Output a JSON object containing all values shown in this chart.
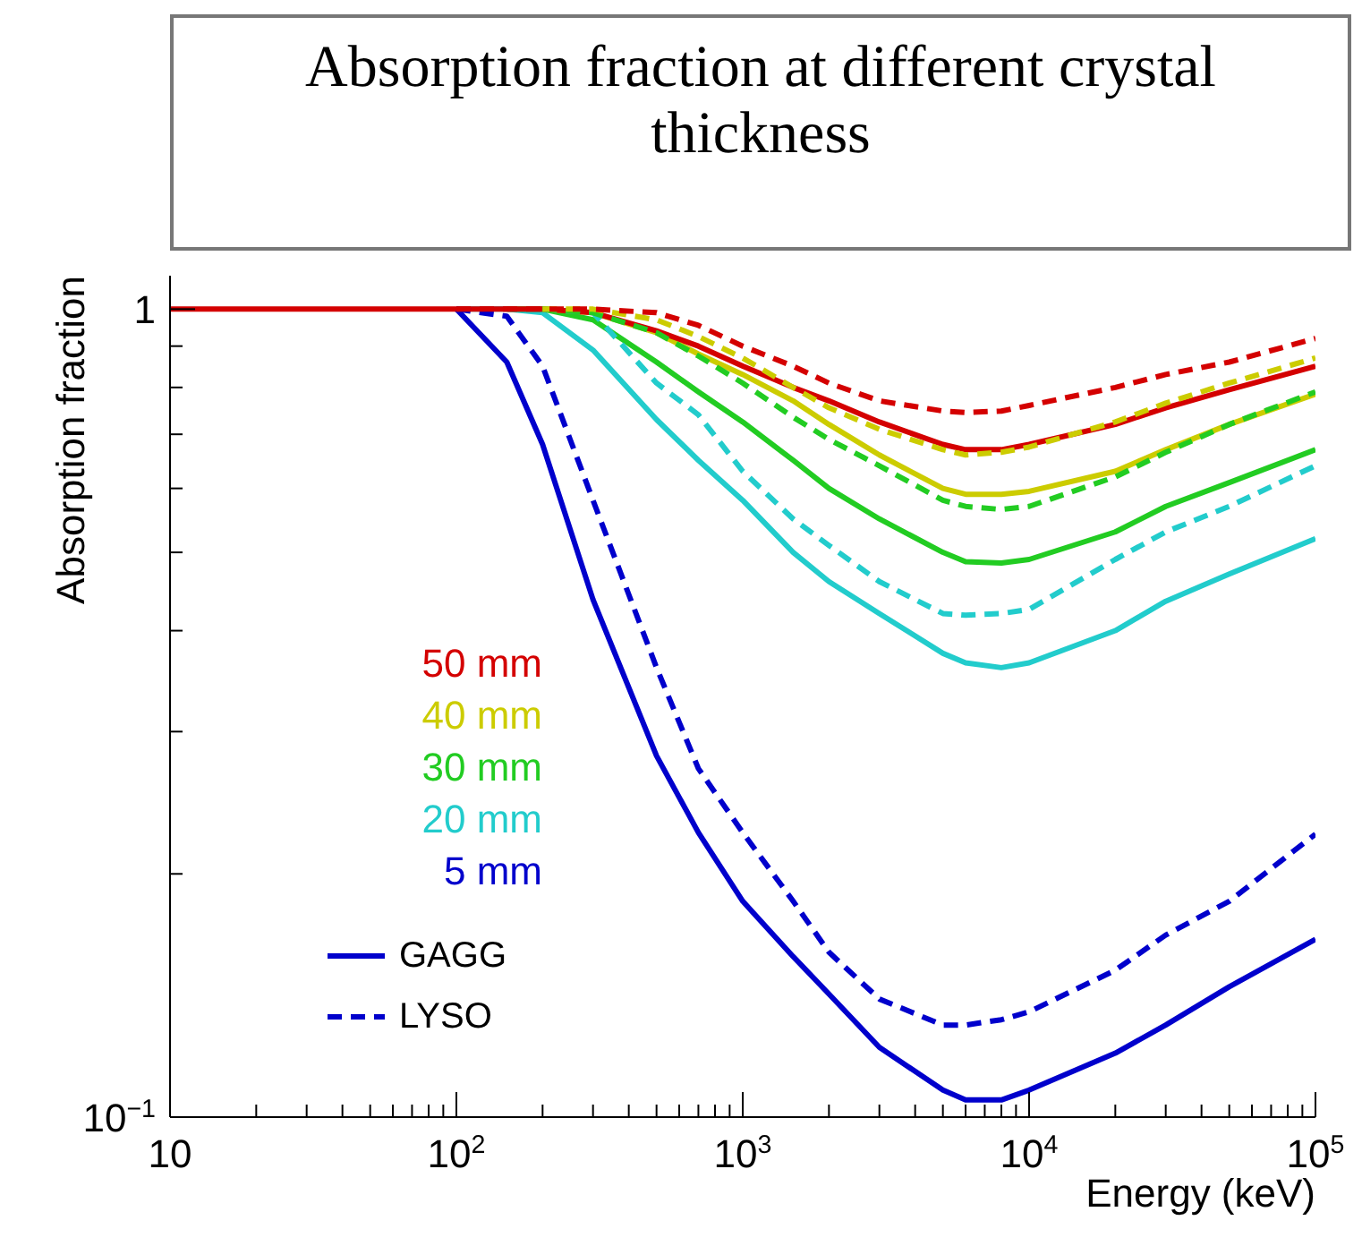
{
  "chart_data": {
    "type": "line",
    "title": "Absorption fraction at different crystal thickness",
    "xlabel": "Energy (keV)",
    "ylabel": "Absorption fraction",
    "log": "xy",
    "grid": false,
    "legend": "left",
    "marker": "none",
    "xlim": [
      10,
      100000
    ],
    "ylim": [
      0.1,
      1.1
    ],
    "xticks": [
      10,
      {
        "value": 20,
        "label": null
      },
      {
        "value": 30,
        "label": null
      },
      {
        "value": 40,
        "label": null
      },
      {
        "value": 50,
        "label": null
      },
      {
        "value": 60,
        "label": null
      },
      {
        "value": 70,
        "label": null
      },
      {
        "value": 80,
        "label": null
      },
      {
        "value": 90,
        "label": null
      },
      {
        "value": 100,
        "label": "10$^{2}$"
      },
      {
        "value": 200,
        "label": null
      },
      {
        "value": 300,
        "label": null
      },
      {
        "value": 400,
        "label": null
      },
      {
        "value": 500,
        "label": null
      },
      {
        "value": 600,
        "label": null
      },
      {
        "value": 700,
        "label": null
      },
      {
        "value": 800,
        "label": null
      },
      {
        "value": 900,
        "label": null
      },
      {
        "value": 1000,
        "label": "10$^{3}$"
      },
      {
        "value": 2000,
        "label": null
      },
      {
        "value": 3000,
        "label": null
      },
      {
        "value": 4000,
        "label": null
      },
      {
        "value": 5000,
        "label": null
      },
      {
        "value": 6000,
        "label": null
      },
      {
        "value": 7000,
        "label": null
      },
      {
        "value": 8000,
        "label": null
      },
      {
        "value": 9000,
        "label": null
      },
      {
        "value": 10000,
        "label": "10$^{4}$"
      },
      {
        "value": 20000,
        "label": null
      },
      {
        "value": 30000,
        "label": null
      },
      {
        "value": 40000,
        "label": null
      },
      {
        "value": 50000,
        "label": null
      },
      {
        "value": 60000,
        "label": null
      },
      {
        "value": 70000,
        "label": null
      },
      {
        "value": 80000,
        "label": null
      },
      {
        "value": 90000,
        "label": null
      },
      {
        "value": 100000,
        "label": "10$^{5}$"
      }
    ],
    "yticks": [
      {
        "value": 0.1,
        "label": "10$^{−1}$"
      },
      {
        "value": 0.2,
        "label": null
      },
      {
        "value": 0.3,
        "label": null
      },
      {
        "value": 0.4,
        "label": null
      },
      {
        "value": 0.5,
        "label": null
      },
      {
        "value": 0.6,
        "label": null
      },
      {
        "value": 0.7,
        "label": null
      },
      {
        "value": 0.8,
        "label": null
      },
      {
        "value": 0.9,
        "label": null
      },
      1
    ],
    "annotations": [
      "GAGG",
      "LYSO"
    ],
    "x": [
      10,
      100,
      150,
      200,
      300,
      500,
      700,
      1000,
      1500,
      2000,
      3000,
      5000,
      6000,
      8000,
      10000,
      20000,
      30000,
      50000,
      100000
    ],
    "series": [
      {
        "name": "50 mm",
        "color": "#d40000",
        "line_style": "solid",
        "values": [
          1,
          1,
          1,
          1,
          0.99,
          0.94,
          0.9,
          0.85,
          0.8,
          0.77,
          0.725,
          0.68,
          0.67,
          0.67,
          0.68,
          0.72,
          0.755,
          0.795,
          0.85
        ]
      },
      {
        "color": "#d40000",
        "line_style": "dashed",
        "values": [
          null,
          1,
          1,
          1,
          1,
          0.99,
          0.955,
          0.9,
          0.85,
          0.81,
          0.77,
          0.748,
          0.745,
          0.748,
          0.76,
          0.8,
          0.83,
          0.86,
          0.92
        ]
      },
      {
        "name": "40 mm",
        "color": "#cccc00",
        "line_style": "solid",
        "values": [
          null,
          null,
          null,
          1,
          0.99,
          0.935,
          0.88,
          0.83,
          0.77,
          0.72,
          0.66,
          0.6,
          0.59,
          0.59,
          0.595,
          0.63,
          0.67,
          0.72,
          0.785
        ]
      },
      {
        "color": "#cccc00",
        "line_style": "dashed",
        "values": [
          null,
          null,
          null,
          1,
          1,
          0.97,
          0.925,
          0.87,
          0.8,
          0.755,
          0.71,
          0.67,
          0.66,
          0.665,
          0.675,
          0.725,
          0.765,
          0.81,
          0.87
        ]
      },
      {
        "name": "30 mm",
        "color": "#22cc22",
        "line_style": "solid",
        "values": [
          null,
          null,
          1,
          1,
          0.97,
          0.86,
          0.79,
          0.725,
          0.65,
          0.6,
          0.55,
          0.5,
          0.487,
          0.485,
          0.49,
          0.53,
          0.57,
          0.61,
          0.67
        ]
      },
      {
        "color": "#22cc22",
        "line_style": "dashed",
        "values": [
          null,
          null,
          null,
          1,
          0.99,
          0.935,
          0.875,
          0.81,
          0.735,
          0.69,
          0.64,
          0.58,
          0.57,
          0.565,
          0.57,
          0.62,
          0.665,
          0.72,
          0.79
        ]
      },
      {
        "name": "20 mm",
        "color": "#22cccc",
        "line_style": "solid",
        "values": [
          null,
          1,
          1,
          0.99,
          0.89,
          0.73,
          0.65,
          0.58,
          0.5,
          0.46,
          0.42,
          0.375,
          0.365,
          0.36,
          0.365,
          0.4,
          0.435,
          0.47,
          0.52
        ]
      },
      {
        "color": "#22cccc",
        "line_style": "dashed",
        "values": [
          null,
          null,
          null,
          1,
          0.99,
          0.81,
          0.74,
          0.63,
          0.55,
          0.51,
          0.46,
          0.42,
          0.418,
          0.42,
          0.425,
          0.49,
          0.53,
          0.57,
          0.64
        ]
      },
      {
        "name": "5 mm",
        "color": "#0000cc",
        "line_style": "solid",
        "values": [
          null,
          1,
          0.86,
          0.68,
          0.437,
          0.28,
          0.225,
          0.185,
          0.158,
          0.142,
          0.122,
          0.108,
          0.105,
          0.105,
          0.108,
          0.12,
          0.13,
          0.145,
          0.166
        ]
      },
      {
        "color": "#0000cc",
        "line_style": "dashed",
        "values": [
          null,
          1,
          0.98,
          0.85,
          0.58,
          0.36,
          0.27,
          0.225,
          0.185,
          0.16,
          0.14,
          0.13,
          0.13,
          0.132,
          0.135,
          0.152,
          0.168,
          0.185,
          0.224
        ]
      }
    ]
  }
}
